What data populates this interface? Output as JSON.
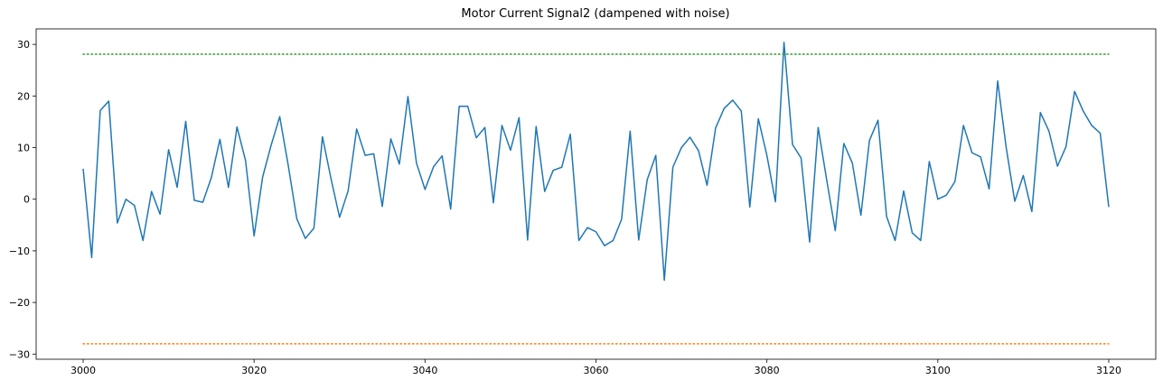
{
  "chart_data": {
    "type": "line",
    "title": "Motor Current Signal2 (dampened with noise)",
    "xlabel": "",
    "ylabel": "",
    "xlim": [
      2994.5,
      3125.5
    ],
    "ylim": [
      -31,
      33
    ],
    "grid": false,
    "xticks": [
      3000,
      3020,
      3040,
      3060,
      3080,
      3100,
      3120
    ],
    "yticks": [
      -30,
      -20,
      -10,
      0,
      10,
      20,
      30
    ],
    "series": [
      {
        "color": "#1f77b4",
        "style": "solid",
        "x_start": 3000,
        "x_step": 1,
        "values": [
          5.9,
          -11.3,
          17.2,
          19.0,
          -4.6,
          0.0,
          -1.2,
          -8.0,
          1.5,
          -2.9,
          9.6,
          2.3,
          15.1,
          -0.2,
          -0.6,
          4.2,
          11.6,
          2.3,
          14.0,
          7.5,
          -7.1,
          4.3,
          10.5,
          16.0,
          6.5,
          -3.8,
          -7.6,
          -5.6,
          12.1,
          4.0,
          -3.5,
          1.6,
          13.6,
          8.5,
          8.8,
          -1.4,
          11.7,
          6.8,
          19.9,
          7.0,
          1.9,
          6.3,
          8.4,
          -1.9,
          18.0,
          18.0,
          11.9,
          13.9,
          -0.7,
          14.3,
          9.5,
          15.8,
          -7.9,
          14.1,
          1.5,
          5.6,
          6.2,
          12.6,
          -8.0,
          -5.5,
          -6.3,
          -9.0,
          -8.0,
          -3.9,
          13.2,
          -7.9,
          3.8,
          8.5,
          -15.7,
          6.2,
          10.0,
          12.0,
          9.4,
          2.7,
          13.8,
          17.6,
          19.2,
          17.1,
          -1.5,
          15.6,
          8.5,
          -0.5,
          30.4,
          10.6,
          8.0,
          -8.3,
          13.9,
          3.7,
          -6.1,
          10.8,
          7.0,
          -3.1,
          11.4,
          15.3,
          -3.3,
          -8.0,
          1.6,
          -6.5,
          -8.0,
          7.3,
          0.0,
          0.8,
          3.4,
          14.3,
          9.0,
          8.2,
          2.0,
          22.9,
          10.0,
          -0.4,
          4.6,
          -2.4,
          16.8,
          13.2,
          6.4,
          10.2,
          20.9,
          17.1,
          14.3,
          12.8,
          -1.5
        ]
      },
      {
        "color": "#2ca02c",
        "style": "dotted",
        "x": [
          3000,
          3120
        ],
        "values": [
          28.1,
          28.1
        ]
      },
      {
        "color": "#ff7f0e",
        "style": "dotted",
        "x": [
          3000,
          3120
        ],
        "values": [
          -28.0,
          -28.0
        ]
      }
    ]
  }
}
